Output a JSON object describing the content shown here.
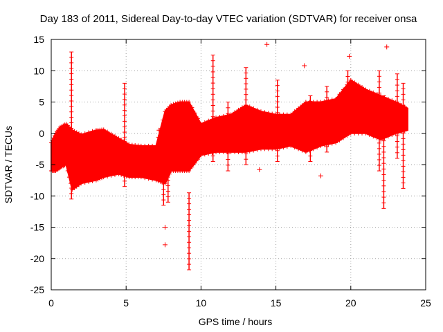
{
  "chart_data": {
    "type": "scatter",
    "title": "Day 183 of 2011, Sidereal Day-to-day VTEC variation (SDTVAR) for receiver onsa",
    "xlabel": "GPS time / hours",
    "ylabel": "SDTVAR / TECUs",
    "xlim": [
      0,
      25
    ],
    "ylim": [
      -25,
      15
    ],
    "xticks": [
      "0",
      "5",
      "10",
      "15",
      "20",
      "25"
    ],
    "yticks": [
      "15",
      "10",
      "5",
      "0",
      "-5",
      "-10",
      "-15",
      "-20",
      "-25"
    ],
    "grid": true,
    "series": [
      {
        "name": "SDTVAR",
        "color": "#ff0000",
        "marker": "plus",
        "band": {
          "x": [
            0,
            0.3,
            0.6,
            1.0,
            1.4,
            2.0,
            3.0,
            3.5,
            4.5,
            5.2,
            6.0,
            7.0,
            7.6,
            8.0,
            8.6,
            9.2,
            10.0,
            11.0,
            12.0,
            13.0,
            14.0,
            15.0,
            16.0,
            17.0,
            18.0,
            19.0,
            20.0,
            21.0,
            22.0,
            23.0,
            23.8
          ],
          "upper": [
            -1.5,
            0.0,
            1.0,
            1.5,
            0.5,
            -0.2,
            0.5,
            0.6,
            -0.8,
            -1.8,
            -2.0,
            -2.0,
            3.5,
            4.5,
            5.0,
            5.0,
            1.5,
            2.5,
            3.0,
            4.5,
            3.5,
            3.0,
            3.0,
            5.0,
            5.0,
            5.5,
            8.5,
            7.0,
            6.0,
            5.0,
            4.0
          ],
          "lower": [
            -6.0,
            -6.0,
            -5.5,
            -5.0,
            -9.0,
            -8.0,
            -7.5,
            -7.0,
            -6.5,
            -7.0,
            -7.0,
            -7.5,
            -8.0,
            -6.0,
            -6.0,
            -6.0,
            -3.5,
            -3.0,
            -3.0,
            -3.0,
            -2.5,
            -2.5,
            -2.0,
            -3.0,
            -2.0,
            -1.5,
            0.0,
            0.0,
            -1.0,
            0.0,
            0.5
          ]
        },
        "spikes": [
          {
            "x": 1.35,
            "min": -10.5,
            "max": 13.0
          },
          {
            "x": 4.9,
            "min": -8.5,
            "max": 8.0
          },
          {
            "x": 7.5,
            "min": -11.5,
            "max": 0.5
          },
          {
            "x": 7.8,
            "min": -11.0,
            "max": 3.0
          },
          {
            "x": 9.2,
            "min": -21.8,
            "max": -9.5
          },
          {
            "x": 10.8,
            "min": -4.5,
            "max": 12.5
          },
          {
            "x": 11.8,
            "min": -6.0,
            "max": 5.0
          },
          {
            "x": 13.0,
            "min": -5.0,
            "max": 10.5
          },
          {
            "x": 15.1,
            "min": -4.5,
            "max": 8.5
          },
          {
            "x": 17.3,
            "min": -4.5,
            "max": 6.0
          },
          {
            "x": 18.4,
            "min": -3.0,
            "max": 7.5
          },
          {
            "x": 19.8,
            "min": 0.0,
            "max": 10.0
          },
          {
            "x": 21.9,
            "min": -6.0,
            "max": 10.0
          },
          {
            "x": 22.2,
            "min": -12.0,
            "max": 6.0
          },
          {
            "x": 23.1,
            "min": -4.0,
            "max": 9.5
          },
          {
            "x": 23.5,
            "min": -8.8,
            "max": 8.0
          }
        ],
        "outliers": [
          {
            "x": 7.6,
            "y": -15.0
          },
          {
            "x": 7.6,
            "y": -17.8
          },
          {
            "x": 14.4,
            "y": 14.2
          },
          {
            "x": 16.9,
            "y": 10.8
          },
          {
            "x": 18.0,
            "y": -6.8
          },
          {
            "x": 19.9,
            "y": 12.3
          },
          {
            "x": 22.4,
            "y": 13.8
          },
          {
            "x": 13.9,
            "y": -5.8
          },
          {
            "x": 7.2,
            "y": 0.5
          }
        ]
      }
    ]
  }
}
